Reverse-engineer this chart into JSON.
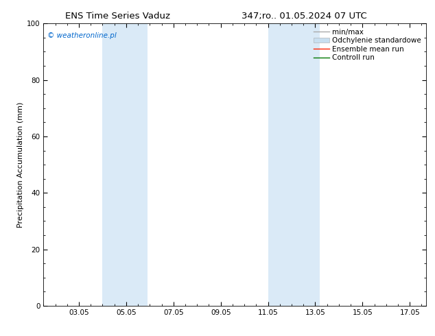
{
  "title_left": "ENS Time Series Vaduz",
  "title_right": "347;ro.. 01.05.2024 07 UTC",
  "ylabel": "Precipitation Accumulation (mm)",
  "watermark": "© weatheronline.pl",
  "watermark_color": "#0066cc",
  "ylim": [
    0,
    100
  ],
  "yticks": [
    0,
    20,
    40,
    60,
    80,
    100
  ],
  "xlim": [
    1.5,
    17.7
  ],
  "x_tick_labels": [
    "03.05",
    "05.05",
    "07.05",
    "09.05",
    "11.05",
    "13.05",
    "15.05",
    "17.05"
  ],
  "x_tick_positions": [
    3,
    5,
    7,
    9,
    11,
    13,
    15,
    17
  ],
  "shaded_bands": [
    {
      "x_start": 4.0,
      "x_end": 5.9
    },
    {
      "x_start": 11.0,
      "x_end": 13.2
    }
  ],
  "shaded_color": "#daeaf7",
  "background_color": "#ffffff",
  "legend_entries": [
    {
      "label": "min/max",
      "color": "#aaaaaa",
      "lw": 1.0
    },
    {
      "label": "Odchylenie standardowe",
      "color": "#c8dff0",
      "lw": 6
    },
    {
      "label": "Ensemble mean run",
      "color": "#ff2200",
      "lw": 1.0
    },
    {
      "label": "Controll run",
      "color": "#007700",
      "lw": 1.0
    }
  ],
  "title_fontsize": 9.5,
  "axis_label_fontsize": 8,
  "tick_fontsize": 7.5,
  "legend_fontsize": 7.5,
  "watermark_fontsize": 7.5
}
